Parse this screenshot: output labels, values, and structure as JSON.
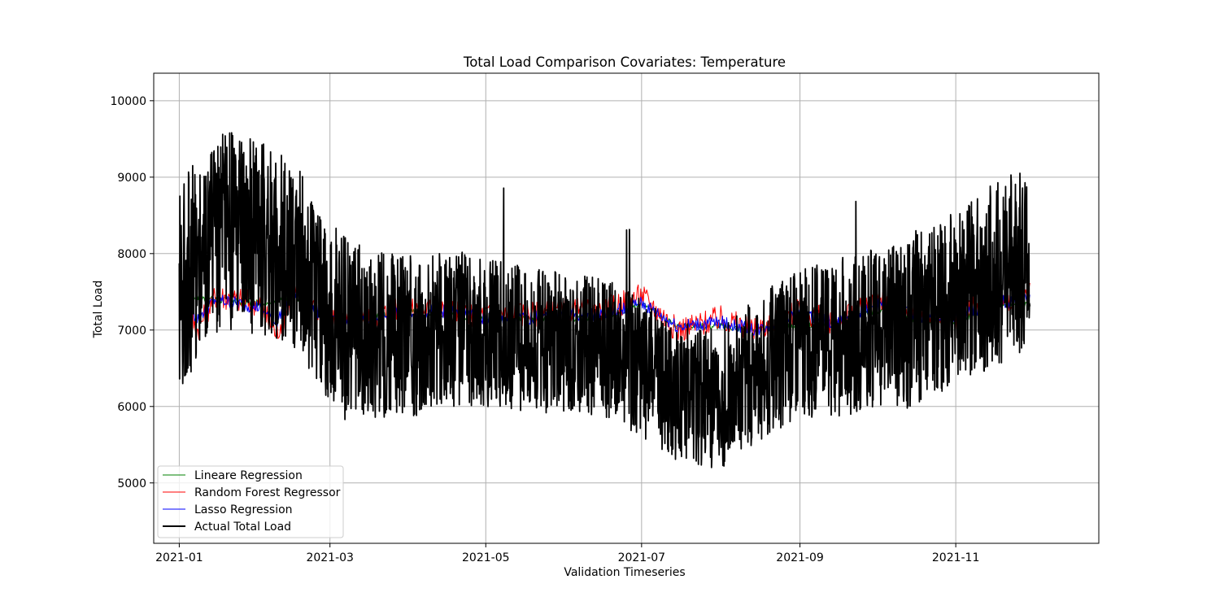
{
  "chart_data": {
    "type": "line",
    "title": "Total Load Comparison Covariates: Temperature",
    "xlabel": "Validation Timeseries",
    "ylabel": "Total Load",
    "x_range": [
      "2020-12-22",
      "2021-12-27"
    ],
    "ylim": [
      4210,
      10360
    ],
    "x_ticks": [
      {
        "date": "2021-01-01",
        "label": "2021-01"
      },
      {
        "date": "2021-03-01",
        "label": "2021-03"
      },
      {
        "date": "2021-05-01",
        "label": "2021-05"
      },
      {
        "date": "2021-07-01",
        "label": "2021-07"
      },
      {
        "date": "2021-09-01",
        "label": "2021-09"
      },
      {
        "date": "2021-11-01",
        "label": "2021-11"
      }
    ],
    "y_ticks": [
      5000,
      6000,
      7000,
      8000,
      9000,
      10000
    ],
    "grid": true,
    "legend_position": "lower-left",
    "series": [
      {
        "name": "Lineare Regression",
        "color": "#008000",
        "x": [
          "2021-01-01",
          "2021-01-15",
          "2021-02-01",
          "2021-02-15",
          "2021-03-01",
          "2021-03-15",
          "2021-04-01",
          "2021-04-15",
          "2021-05-01",
          "2021-05-15",
          "2021-06-01",
          "2021-06-15",
          "2021-07-01",
          "2021-07-15",
          "2021-08-01",
          "2021-08-15",
          "2021-09-01",
          "2021-09-15",
          "2021-10-01",
          "2021-10-15",
          "2021-11-01",
          "2021-11-15",
          "2021-11-30"
        ],
        "y": [
          7450,
          7400,
          7350,
          7450,
          7150,
          7150,
          7250,
          7200,
          7150,
          7150,
          7150,
          7150,
          7350,
          7050,
          7050,
          7000,
          7050,
          7100,
          7250,
          7150,
          7100,
          7300,
          7350
        ]
      },
      {
        "name": "Random Forest Regressor",
        "color": "#ff0000",
        "x": [
          "2021-01-01",
          "2021-01-08",
          "2021-01-15",
          "2021-02-01",
          "2021-02-08",
          "2021-02-15",
          "2021-03-01",
          "2021-03-15",
          "2021-04-01",
          "2021-04-15",
          "2021-05-01",
          "2021-05-15",
          "2021-06-01",
          "2021-06-15",
          "2021-07-01",
          "2021-07-15",
          "2021-08-01",
          "2021-08-15",
          "2021-09-01",
          "2021-09-15",
          "2021-10-01",
          "2021-10-15",
          "2021-11-01",
          "2021-11-15",
          "2021-11-30"
        ],
        "y": [
          7500,
          7000,
          7450,
          7350,
          6950,
          7500,
          7100,
          7150,
          7300,
          7250,
          7200,
          7200,
          7250,
          7250,
          7450,
          7000,
          7150,
          7000,
          7250,
          7100,
          7400,
          7200,
          7150,
          7400,
          7450
        ]
      },
      {
        "name": "Lasso Regression",
        "color": "#0000ff",
        "x": [
          "2021-01-01",
          "2021-01-08",
          "2021-01-15",
          "2021-02-01",
          "2021-02-08",
          "2021-02-15",
          "2021-03-01",
          "2021-03-15",
          "2021-04-01",
          "2021-04-15",
          "2021-05-01",
          "2021-05-15",
          "2021-06-01",
          "2021-06-15",
          "2021-07-01",
          "2021-07-15",
          "2021-08-01",
          "2021-08-15",
          "2021-09-01",
          "2021-09-15",
          "2021-10-01",
          "2021-10-15",
          "2021-11-01",
          "2021-11-15",
          "2021-11-30"
        ],
        "y": [
          7450,
          7150,
          7400,
          7300,
          7100,
          7500,
          7100,
          7150,
          7250,
          7250,
          7150,
          7150,
          7200,
          7200,
          7350,
          7050,
          7100,
          7000,
          7200,
          7100,
          7350,
          7200,
          7150,
          7350,
          7400
        ]
      },
      {
        "name": "Actual Total Load",
        "color": "#000000",
        "x": [
          "2021-01-01",
          "2021-01-15",
          "2021-02-01",
          "2021-02-15",
          "2021-03-01",
          "2021-03-15",
          "2021-04-01",
          "2021-04-15",
          "2021-05-01",
          "2021-05-15",
          "2021-06-01",
          "2021-06-15",
          "2021-07-01",
          "2021-07-15",
          "2021-08-01",
          "2021-08-15",
          "2021-09-01",
          "2021-09-15",
          "2021-10-01",
          "2021-10-15",
          "2021-11-01",
          "2021-11-15",
          "2021-11-30"
        ],
        "y": [
          7600,
          8300,
          8200,
          8000,
          7200,
          7000,
          6900,
          7000,
          7000,
          6900,
          6800,
          6800,
          6500,
          6200,
          6100,
          6500,
          6800,
          6900,
          7000,
          7100,
          7400,
          7700,
          8000
        ]
      }
    ]
  }
}
